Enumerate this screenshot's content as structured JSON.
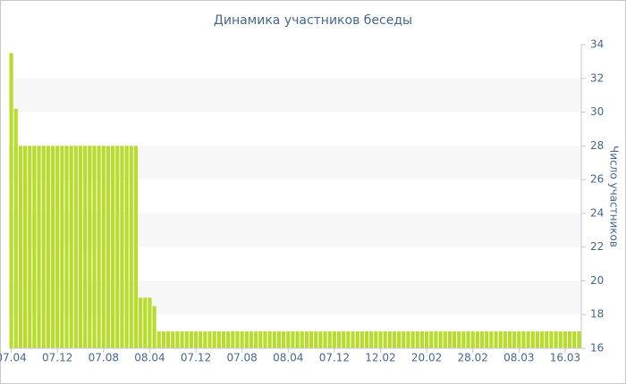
{
  "chart_data": {
    "type": "bar",
    "title": "Динамика участников беседы",
    "y_label": "Число участников",
    "categories": [
      "07.04",
      null,
      null,
      null,
      null,
      null,
      null,
      null,
      null,
      null,
      "07.12",
      null,
      null,
      null,
      null,
      null,
      null,
      null,
      null,
      null,
      "07.08",
      null,
      null,
      null,
      null,
      null,
      null,
      null,
      null,
      null,
      "08.04",
      null,
      null,
      null,
      null,
      null,
      null,
      null,
      null,
      null,
      "07.12",
      null,
      null,
      null,
      null,
      null,
      null,
      null,
      null,
      null,
      "07.08",
      null,
      null,
      null,
      null,
      null,
      null,
      null,
      null,
      null,
      "08.04",
      null,
      null,
      null,
      null,
      null,
      null,
      null,
      null,
      null,
      "07.12",
      null,
      null,
      null,
      null,
      null,
      null,
      null,
      null,
      null,
      "12.02",
      null,
      null,
      null,
      null,
      null,
      null,
      null,
      null,
      null,
      "20.02",
      null,
      null,
      null,
      null,
      null,
      null,
      null,
      null,
      null,
      "28.02",
      null,
      null,
      null,
      null,
      null,
      null,
      null,
      null,
      null,
      "08.03",
      null,
      null,
      null,
      null,
      null,
      null,
      null,
      null,
      null,
      "16.03",
      null,
      null,
      null
    ],
    "values": [
      33.5,
      30.2,
      28,
      28,
      28,
      28,
      28,
      28,
      28,
      28,
      28,
      28,
      28,
      28,
      28,
      28,
      28,
      28,
      28,
      28,
      28,
      28,
      28,
      28,
      28,
      28,
      28,
      28,
      19,
      19,
      19,
      18.5,
      17,
      17,
      17,
      17,
      17,
      17,
      17,
      17,
      17,
      17,
      17,
      17,
      17,
      17,
      17,
      17,
      17,
      17,
      17,
      17,
      17,
      17,
      17,
      17,
      17,
      17,
      17,
      17,
      17,
      17,
      17,
      17,
      17,
      17,
      17,
      17,
      17,
      17,
      17,
      17,
      17,
      17,
      17,
      17,
      17,
      17,
      17,
      17,
      17,
      17,
      17,
      17,
      17,
      17,
      17,
      17,
      17,
      17,
      17,
      17,
      17,
      17,
      17,
      17,
      17,
      17,
      17,
      17,
      17,
      17,
      17,
      17,
      17,
      17,
      17,
      17,
      17,
      17,
      17,
      17,
      17,
      17,
      17,
      17,
      17,
      17,
      17,
      17,
      17,
      17,
      17,
      17
    ],
    "color": "#b7dc2c",
    "ylim": [
      16,
      34
    ],
    "yticks": [
      16,
      18,
      20,
      22,
      24,
      26,
      28,
      30,
      32,
      34
    ],
    "y_axis_side": "right",
    "grid": "bands"
  }
}
